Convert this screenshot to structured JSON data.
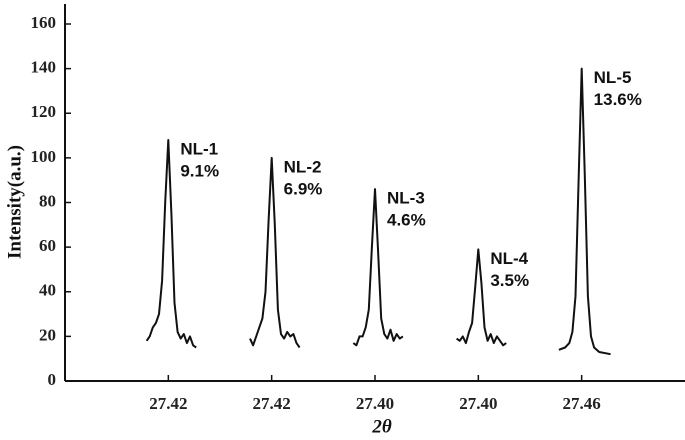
{
  "chart_data": {
    "type": "line",
    "ylabel": "Intensity(a.u.)",
    "xlabel": "2θ",
    "xlim": [
      0,
      6
    ],
    "ylim": [
      0,
      160
    ],
    "yticks": [
      0,
      20,
      40,
      60,
      80,
      100,
      120,
      140,
      160
    ],
    "xticks": [
      {
        "value": 1,
        "label": "27.42"
      },
      {
        "value": 2,
        "label": "27.42"
      },
      {
        "value": 3,
        "label": "27.40"
      },
      {
        "value": 4,
        "label": "27.40"
      },
      {
        "value": 5,
        "label": "27.46"
      }
    ],
    "color": "#111111",
    "annotations": [
      [
        "NL-1",
        "9.1%"
      ],
      [
        "NL-2",
        "6.9%"
      ],
      [
        "NL-3",
        "4.6%"
      ],
      [
        "NL-4",
        "3.5%"
      ],
      [
        "NL-5",
        "13.6%"
      ]
    ],
    "series": [
      {
        "x": [
          0.79,
          0.82,
          0.85,
          0.88,
          0.91,
          0.94,
          0.97,
          1.0,
          1.03,
          1.06,
          1.09,
          1.12,
          1.15,
          1.18,
          1.21,
          1.24,
          1.27
        ],
        "values": [
          18,
          20,
          24,
          26,
          30,
          45,
          80,
          108,
          75,
          35,
          22,
          19,
          21,
          17,
          20,
          16,
          15
        ]
      },
      {
        "x": [
          1.79,
          1.82,
          1.85,
          1.88,
          1.91,
          1.94,
          1.97,
          2.0,
          2.03,
          2.06,
          2.09,
          2.12,
          2.15,
          2.18,
          2.21,
          2.24,
          2.27
        ],
        "values": [
          19,
          16,
          20,
          24,
          28,
          40,
          72,
          100,
          70,
          32,
          21,
          19,
          22,
          20,
          21,
          17,
          15
        ]
      },
      {
        "x": [
          2.79,
          2.82,
          2.85,
          2.88,
          2.91,
          2.94,
          2.97,
          3.0,
          3.03,
          3.06,
          3.09,
          3.12,
          3.15,
          3.18,
          3.21,
          3.24,
          3.27
        ],
        "values": [
          17,
          16,
          20,
          20,
          24,
          32,
          60,
          86,
          58,
          28,
          21,
          19,
          23,
          18,
          21,
          19,
          20
        ]
      },
      {
        "x": [
          3.79,
          3.82,
          3.85,
          3.88,
          3.91,
          3.94,
          3.97,
          4.0,
          4.03,
          4.06,
          4.09,
          4.12,
          4.15,
          4.18,
          4.21,
          4.24,
          4.27
        ],
        "values": [
          19,
          18,
          20,
          17,
          22,
          26,
          42,
          59,
          44,
          24,
          18,
          21,
          17,
          20,
          18,
          16,
          17
        ]
      },
      {
        "x": [
          4.78,
          4.84,
          4.88,
          4.91,
          4.94,
          4.97,
          5.0,
          5.03,
          5.06,
          5.09,
          5.12,
          5.17,
          5.28
        ],
        "values": [
          14,
          15,
          17,
          22,
          38,
          90,
          140,
          92,
          38,
          20,
          15,
          13,
          12
        ]
      }
    ]
  }
}
